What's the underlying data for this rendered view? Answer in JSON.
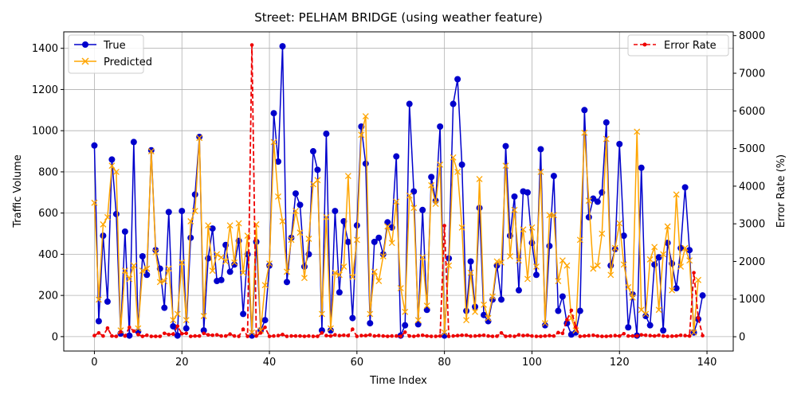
{
  "chart_data": {
    "type": "line",
    "title": "Street: PELHAM BRIDGE (using weather feature)",
    "xlabel": "Time Index",
    "ylabel": "Traffic Volume",
    "y2label": "Error Rate (%)",
    "xlim": [
      -7,
      146
    ],
    "ylim": [
      -70,
      1480
    ],
    "y2lim": [
      -380,
      8100
    ],
    "xticks": [
      0,
      20,
      40,
      60,
      80,
      100,
      120,
      140
    ],
    "yticks": [
      0,
      200,
      400,
      600,
      800,
      1000,
      1200,
      1400
    ],
    "y2ticks": [
      0,
      1000,
      2000,
      3000,
      4000,
      5000,
      6000,
      7000,
      8000
    ],
    "grid": true,
    "legend_left_position": "upper-left",
    "legend_right_position": "upper-right",
    "colors": {
      "true": "#0000cc",
      "predicted": "#ffa500",
      "error": "#ee0000",
      "grid": "#b0b0b0"
    },
    "series": [
      {
        "name": "True",
        "axis": "left",
        "marker": "circle",
        "values": [
          928,
          75,
          490,
          170,
          860,
          595,
          15,
          510,
          5,
          945,
          25,
          390,
          300,
          905,
          420,
          330,
          140,
          605,
          50,
          5,
          610,
          40,
          480,
          690,
          970,
          30,
          380,
          525,
          270,
          275,
          445,
          315,
          350,
          465,
          110,
          400,
          5,
          460,
          30,
          80,
          345,
          1085,
          850,
          1410,
          265,
          480,
          695,
          640,
          340,
          400,
          900,
          810,
          30,
          985,
          30,
          610,
          215,
          560,
          460,
          90,
          540,
          1020,
          840,
          65,
          460,
          480,
          400,
          555,
          530,
          875,
          5,
          55,
          1130,
          705,
          60,
          615,
          130,
          775,
          660,
          1020,
          5,
          380,
          1130,
          1250,
          835,
          125,
          365,
          145,
          625,
          105,
          75,
          180,
          345,
          180,
          925,
          490,
          680,
          225,
          705,
          700,
          455,
          300,
          910,
          55,
          440,
          780,
          125,
          195,
          65,
          10,
          20,
          125,
          1100,
          580,
          670,
          655,
          700,
          1040,
          345,
          425,
          935,
          490,
          45,
          205,
          5,
          820,
          100,
          55,
          350,
          385,
          30,
          455,
          355,
          235,
          430,
          725,
          420,
          20,
          85,
          200
        ]
      },
      {
        "name": "Predicted",
        "axis": "left",
        "marker": "x",
        "values": [
          650,
          180,
          545,
          580,
          830,
          800,
          30,
          320,
          280,
          345,
          40,
          320,
          330,
          900,
          410,
          265,
          270,
          330,
          80,
          110,
          360,
          80,
          560,
          610,
          965,
          100,
          540,
          320,
          400,
          385,
          365,
          540,
          360,
          550,
          310,
          490,
          20,
          545,
          30,
          250,
          355,
          945,
          680,
          560,
          315,
          470,
          610,
          505,
          285,
          475,
          740,
          760,
          110,
          580,
          40,
          310,
          300,
          340,
          780,
          290,
          470,
          980,
          1070,
          110,
          315,
          270,
          390,
          535,
          455,
          655,
          235,
          120,
          685,
          625,
          80,
          385,
          150,
          735,
          645,
          835,
          20,
          345,
          870,
          800,
          530,
          80,
          310,
          120,
          765,
          155,
          90,
          195,
          365,
          360,
          830,
          390,
          615,
          370,
          520,
          280,
          530,
          340,
          800,
          65,
          590,
          590,
          270,
          370,
          345,
          90,
          30,
          470,
          990,
          660,
          330,
          345,
          500,
          960,
          300,
          430,
          550,
          350,
          240,
          190,
          995,
          130,
          110,
          375,
          435,
          130,
          400,
          535,
          225,
          690,
          340,
          430,
          370,
          20,
          275
        ]
      },
      {
        "name": "Error Rate",
        "axis": "right",
        "marker": "dot",
        "values": [
          30,
          100,
          20,
          230,
          20,
          10,
          130,
          20,
          250,
          150,
          60,
          10,
          40,
          10,
          10,
          10,
          90,
          60,
          70,
          280,
          80,
          90,
          10,
          20,
          20,
          90,
          50,
          40,
          50,
          20,
          20,
          70,
          20,
          10,
          200,
          10,
          7750,
          20,
          100,
          250,
          10,
          20,
          30,
          60,
          10,
          20,
          20,
          20,
          10,
          20,
          10,
          10,
          100,
          30,
          20,
          50,
          30,
          40,
          30,
          200,
          10,
          30,
          30,
          50,
          20,
          30,
          20,
          10,
          20,
          20,
          10,
          120,
          20,
          10,
          30,
          40,
          20,
          10,
          10,
          20,
          2950,
          10,
          20,
          30,
          40,
          40,
          15,
          20,
          30,
          40,
          20,
          10,
          15,
          100,
          10,
          20,
          10,
          50,
          30,
          40,
          20,
          10,
          10,
          20,
          30,
          20,
          110,
          90,
          450,
          700,
          260,
          10,
          20,
          30,
          40,
          20,
          10,
          10,
          20,
          30,
          20,
          80,
          20,
          20,
          20,
          50,
          40,
          30,
          20,
          40,
          20,
          10,
          15,
          20,
          40,
          30,
          20,
          1700,
          500,
          30
        ]
      }
    ]
  }
}
